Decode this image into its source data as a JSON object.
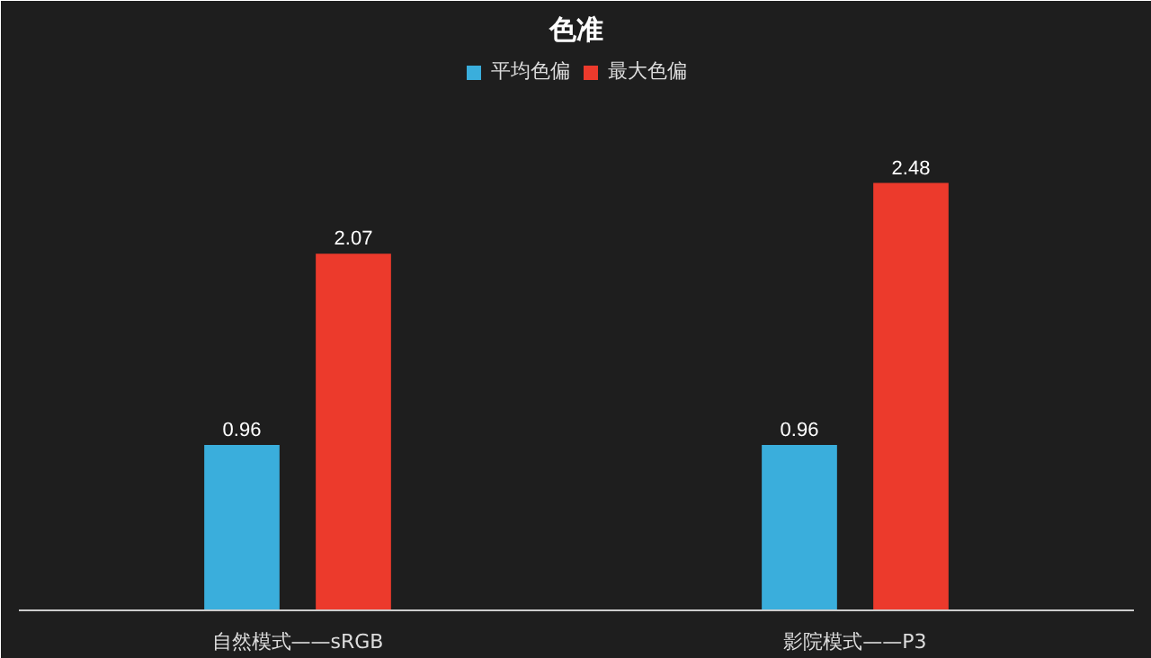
{
  "chart_data": {
    "type": "bar",
    "title": "色准",
    "categories": [
      "自然模式——sRGB",
      "影院模式——P3"
    ],
    "series": [
      {
        "name": "平均色偏",
        "color": "#3aaedc",
        "values": [
          0.96,
          0.96
        ]
      },
      {
        "name": "最大色偏",
        "color": "#ec3a2c",
        "values": [
          2.07,
          2.48
        ]
      }
    ],
    "data_labels": true,
    "legend": "top",
    "grid": false
  }
}
